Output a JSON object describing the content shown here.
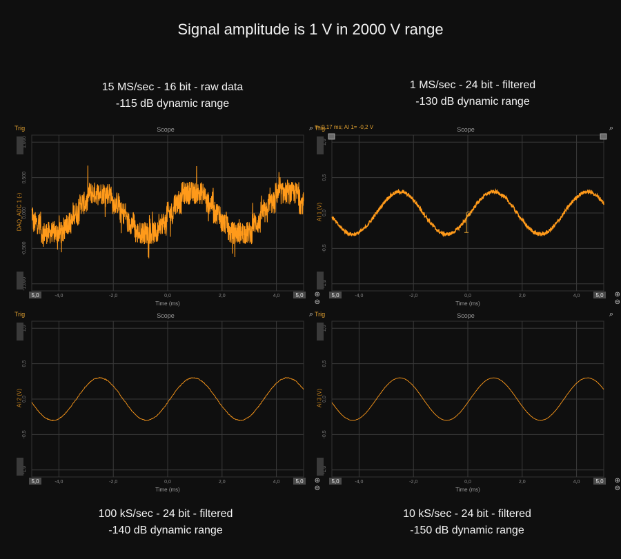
{
  "title": "Signal amplitude is 1 V in 2000 V range",
  "captions": [
    {
      "rate": "15 MS/sec - 16 bit - raw data",
      "range": "-115 dB dynamic range"
    },
    {
      "rate": "1 MS/sec - 24 bit - filtered",
      "range": "-130 dB dynamic range"
    },
    {
      "rate": "100 kS/sec - 24 bit - filtered",
      "range": "-140 dB dynamic range"
    },
    {
      "rate": "10 kS/sec - 24 bit - filtered",
      "range": "-150 dB dynamic range"
    }
  ],
  "scopes": [
    {
      "trig_label": "Trig",
      "title": "Scope",
      "ylabel": "DAQ_ADC 1 (-)",
      "xlabel": "Time (ms)",
      "x_start_box": "5,0",
      "x_end_box": "5,0",
      "y_ticks": [
        "1,000",
        "0,500",
        "0,000",
        "-0,500",
        "-1,000"
      ],
      "x_ticks": [
        "-4,0",
        "-2,0",
        "0,0",
        "2,0",
        "4,0"
      ],
      "cursor_readout": ""
    },
    {
      "trig_label": "Trig",
      "title": "Scope",
      "ylabel": "AI 1 (V)",
      "xlabel": "Time (ms)",
      "x_start_box": "5,0",
      "x_end_box": "5,0",
      "y_ticks": [
        "1,0",
        "0,5",
        "0,0",
        "-0,5",
        "-1,0"
      ],
      "x_ticks": [
        "-4,0",
        "-2,0",
        "0,0",
        "2,0",
        "4,0"
      ],
      "cursor_readout": "t= 0,17 ms; AI 1= -0,2 V"
    },
    {
      "trig_label": "Trig",
      "title": "Scope",
      "ylabel": "AI 2 (V)",
      "xlabel": "Time (ms)",
      "x_start_box": "5,0",
      "x_end_box": "5,0",
      "y_ticks": [
        "1,0",
        "0,5",
        "0,0",
        "-0,5",
        "-1,0"
      ],
      "x_ticks": [
        "-4,0",
        "-2,0",
        "0,0",
        "2,0",
        "4,0"
      ],
      "cursor_readout": ""
    },
    {
      "trig_label": "Trig",
      "title": "Scope",
      "ylabel": "AI 3 (V)",
      "xlabel": "Time (ms)",
      "x_start_box": "5,0",
      "x_end_box": "5,0",
      "y_ticks": [
        "1,0",
        "0,5",
        "0,0",
        "-0,5",
        "-1,0"
      ],
      "x_ticks": [
        "-4,0",
        "-2,0",
        "0,0",
        "2,0",
        "4,0"
      ],
      "cursor_readout": ""
    }
  ],
  "icons": {
    "zoom": "magnifier-icon",
    "plus": "plus-icon",
    "minus": "minus-icon"
  },
  "colors": {
    "trace": "#ff9a1a",
    "grid": "#3a3a3a",
    "axis_label": "#d08a20",
    "background": "#0f0f0f"
  }
}
